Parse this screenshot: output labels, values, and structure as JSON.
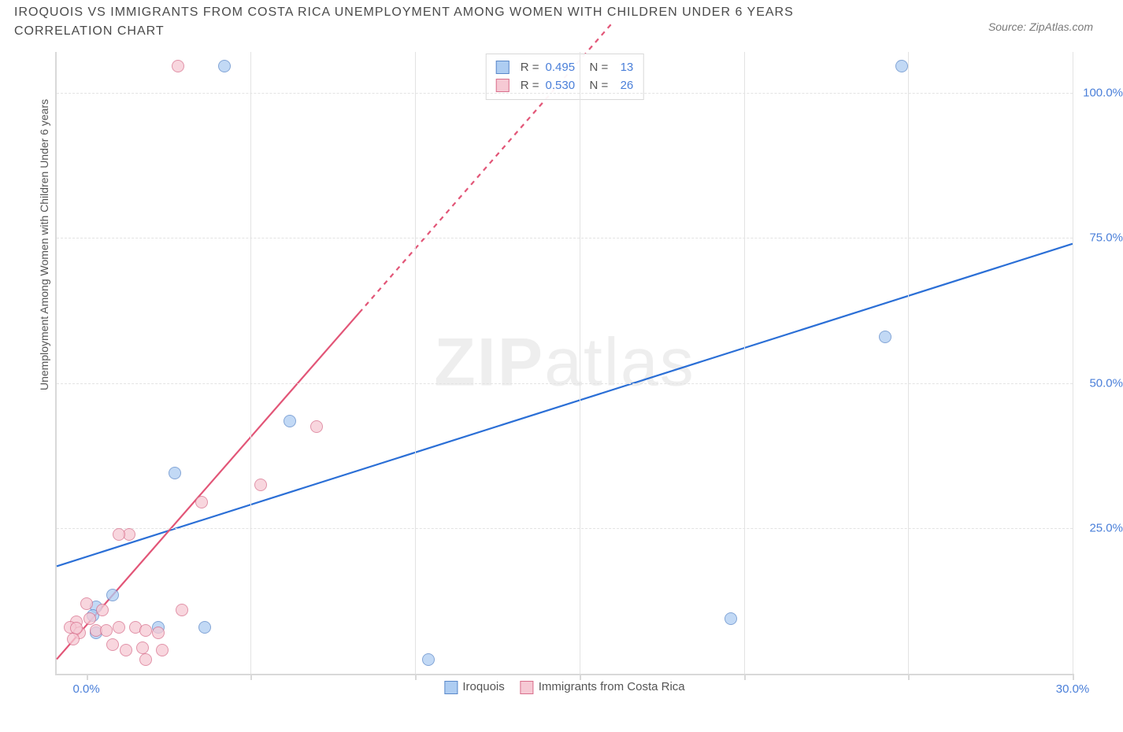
{
  "title": "IROQUOIS VS IMMIGRANTS FROM COSTA RICA UNEMPLOYMENT AMONG WOMEN WITH CHILDREN UNDER 6 YEARS CORRELATION CHART",
  "source": "Source: ZipAtlas.com",
  "yaxis_label": "Unemployment Among Women with Children Under 6 years",
  "watermark_a": "ZIP",
  "watermark_b": "atlas",
  "chart": {
    "type": "scatter",
    "background_color": "#ffffff",
    "grid_color": "#e3e3e3",
    "axis_color": "#d9d9d9",
    "label_color": "#4a7fd9",
    "xlim": [
      -0.9,
      30.0
    ],
    "ylim": [
      0.0,
      107.0
    ],
    "xtick_step": 5.0,
    "ytick_step": 25.0,
    "xlabels": [
      {
        "v": 0.0,
        "t": "0.0%"
      },
      {
        "v": 30.0,
        "t": "30.0%"
      }
    ],
    "ylabels": [
      {
        "v": 25.0,
        "t": "25.0%"
      },
      {
        "v": 50.0,
        "t": "50.0%"
      },
      {
        "v": 75.0,
        "t": "75.0%"
      },
      {
        "v": 100.0,
        "t": "100.0%"
      }
    ],
    "marker_radius": 8,
    "marker_border": 1.5,
    "series": [
      {
        "key": "iroquois",
        "label": "Iroquois",
        "fill": "#aecdf2",
        "stroke": "#5a88c9",
        "line_color": "#2b6fd6",
        "line_width": 2.2,
        "reg_line": {
          "x1": -0.9,
          "y1": 18.5,
          "x2": 30.0,
          "y2": 74.0,
          "dashed_from_x": null
        },
        "stats": {
          "R": "0.495",
          "N": "13"
        },
        "points": [
          {
            "x": 4.2,
            "y": 104.5
          },
          {
            "x": 24.8,
            "y": 104.5
          },
          {
            "x": 24.3,
            "y": 58.0
          },
          {
            "x": 6.2,
            "y": 43.5
          },
          {
            "x": 2.7,
            "y": 34.5
          },
          {
            "x": 19.6,
            "y": 9.5
          },
          {
            "x": 10.4,
            "y": 2.5
          },
          {
            "x": 3.6,
            "y": 8.0
          },
          {
            "x": 2.2,
            "y": 8.0
          },
          {
            "x": 0.8,
            "y": 13.5
          },
          {
            "x": 0.3,
            "y": 11.5
          },
          {
            "x": 0.2,
            "y": 10.0
          },
          {
            "x": 0.3,
            "y": 7.0
          }
        ]
      },
      {
        "key": "costa_rica",
        "label": "Immigrants from Costa Rica",
        "fill": "#f6c9d4",
        "stroke": "#d86f8c",
        "line_color": "#e25577",
        "line_width": 2.2,
        "reg_line": {
          "x1": -0.9,
          "y1": 2.5,
          "x2": 16.0,
          "y2": 112.0,
          "dashed_from_x": 8.3
        },
        "stats": {
          "R": "0.530",
          "N": "26"
        },
        "points": [
          {
            "x": 2.8,
            "y": 104.5
          },
          {
            "x": 7.0,
            "y": 42.5
          },
          {
            "x": 5.3,
            "y": 32.5
          },
          {
            "x": 3.5,
            "y": 29.5
          },
          {
            "x": 1.3,
            "y": 24.0
          },
          {
            "x": 1.0,
            "y": 24.0
          },
          {
            "x": 2.9,
            "y": 11.0
          },
          {
            "x": 0.0,
            "y": 12.0
          },
          {
            "x": 0.5,
            "y": 11.0
          },
          {
            "x": 0.1,
            "y": 9.5
          },
          {
            "x": -0.3,
            "y": 9.0
          },
          {
            "x": -0.5,
            "y": 8.0
          },
          {
            "x": -0.2,
            "y": 7.0
          },
          {
            "x": 0.3,
            "y": 7.5
          },
          {
            "x": 0.6,
            "y": 7.5
          },
          {
            "x": 1.0,
            "y": 8.0
          },
          {
            "x": 1.5,
            "y": 8.0
          },
          {
            "x": 1.8,
            "y": 7.5
          },
          {
            "x": 2.2,
            "y": 7.0
          },
          {
            "x": 0.8,
            "y": 5.0
          },
          {
            "x": 1.2,
            "y": 4.0
          },
          {
            "x": 1.7,
            "y": 4.5
          },
          {
            "x": 2.3,
            "y": 4.0
          },
          {
            "x": 1.8,
            "y": 2.5
          },
          {
            "x": -0.3,
            "y": 7.8
          },
          {
            "x": -0.4,
            "y": 6.0
          }
        ]
      }
    ]
  },
  "legend_series": [
    {
      "fill": "#aecdf2",
      "stroke": "#5a88c9",
      "label": "Iroquois"
    },
    {
      "fill": "#f6c9d4",
      "stroke": "#d86f8c",
      "label": "Immigrants from Costa Rica"
    }
  ]
}
